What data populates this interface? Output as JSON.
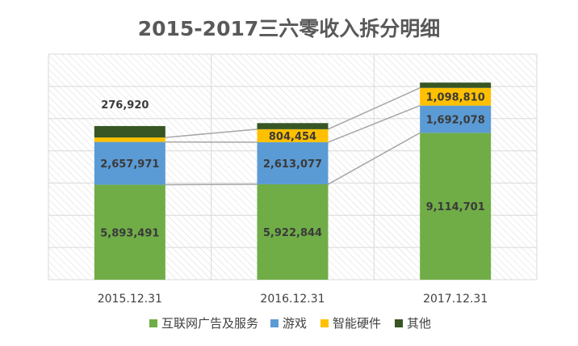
{
  "chart_data": {
    "type": "bar",
    "stacked": true,
    "title": "2015-2017三六零收入拆分明细",
    "categories": [
      "2015.12.31",
      "2016.12.31",
      "2017.12.31"
    ],
    "series": [
      {
        "name": "互联网广告及服务",
        "color": "#70ad47",
        "values": [
          5893491,
          5922844,
          9114701
        ],
        "labels": [
          "5,893,491",
          "5,922,844",
          "9,114,701"
        ]
      },
      {
        "name": "游戏",
        "color": "#5b9bd5",
        "values": [
          2657971,
          2613077,
          1692078
        ],
        "labels": [
          "2,657,971",
          "2,613,077",
          "1,692,078"
        ]
      },
      {
        "name": "智能硬件",
        "color": "#ffc000",
        "values": [
          276920,
          804454,
          1098810
        ],
        "labels": [
          "276,920",
          "804,454",
          "1,098,810"
        ]
      },
      {
        "name": "其他",
        "color": "#375623",
        "values": [
          710000,
          380000,
          330000
        ],
        "labels": [
          "",
          "",
          ""
        ]
      }
    ],
    "ylim": [
      0,
      14000000
    ],
    "grid": true,
    "legend_position": "bottom",
    "series_lines": true
  }
}
